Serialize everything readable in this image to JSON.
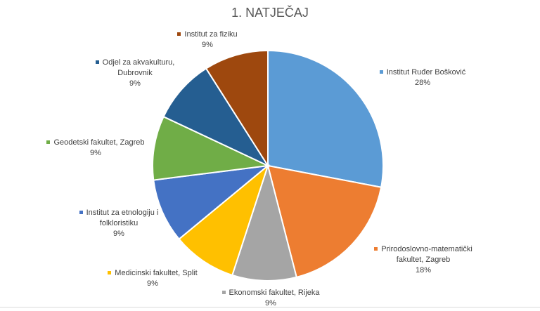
{
  "chart_data": {
    "type": "pie",
    "title": "1. NATJEČAJ",
    "slices": [
      {
        "label": "Institut Ruđer Bošković",
        "value": 28,
        "pct_label": "28%",
        "color": "#5B9BD5"
      },
      {
        "label": "Prirodoslovno-matematički fakultet, Zagreb",
        "value": 18,
        "pct_label": "18%",
        "color": "#ED7D31"
      },
      {
        "label": "Ekonomski fakultet, Rijeka",
        "value": 9,
        "pct_label": "9%",
        "color": "#A5A5A5"
      },
      {
        "label": "Medicinski fakultet, Split",
        "value": 9,
        "pct_label": "9%",
        "color": "#FFC000"
      },
      {
        "label": "Institut za etnologiju i folkloristiku",
        "value": 9,
        "pct_label": "9%",
        "color": "#4472C4"
      },
      {
        "label": "Geodetski fakultet, Zagreb",
        "value": 9,
        "pct_label": "9%",
        "color": "#70AD47"
      },
      {
        "label": "Odjel za akvakulturu, Dubrovnik",
        "value": 9,
        "pct_label": "9%",
        "color": "#255E91"
      },
      {
        "label": "Institut za fiziku",
        "value": 9,
        "pct_label": "9%",
        "color": "#9E480E"
      }
    ]
  }
}
